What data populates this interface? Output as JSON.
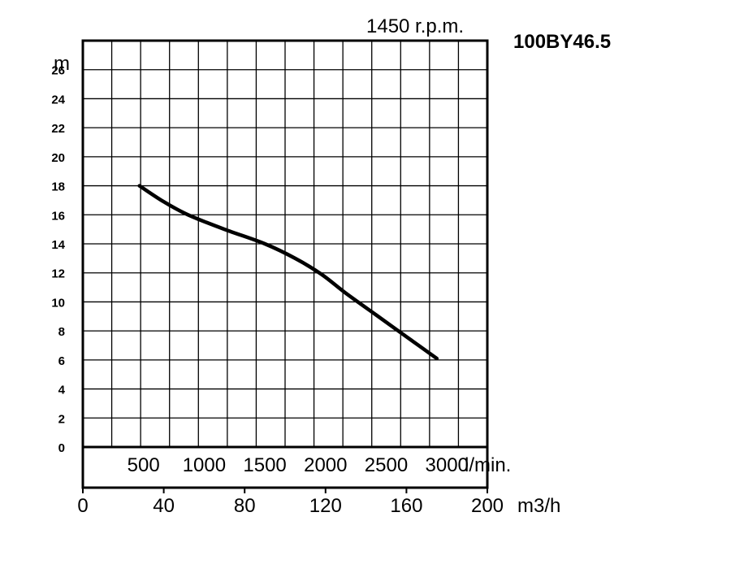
{
  "chart_data": {
    "type": "line",
    "title": "100BY46.5",
    "subtitle": "1450 r.p.m.",
    "ylabel": "m",
    "xlabel": "m3/h",
    "secondary_xlabel": "l/min.",
    "ylim": [
      0,
      28
    ],
    "xlim": [
      0,
      200
    ],
    "y_ticks": [
      "0",
      "2",
      "4",
      "6",
      "8",
      "10",
      "12",
      "14",
      "16",
      "18",
      "20",
      "22",
      "24",
      "26"
    ],
    "x_ticks": [
      "0",
      "40",
      "80",
      "120",
      "160",
      "200"
    ],
    "secondary_x_ticks": [
      "500",
      "1000",
      "1500",
      "2000",
      "2500",
      "3000"
    ],
    "grid": true,
    "series": [
      {
        "x": [
          28,
          40,
          52,
          70,
          90,
          105,
          118,
          130,
          145,
          160,
          175
        ],
        "y": [
          18,
          16.9,
          16.0,
          15.0,
          14.0,
          13.0,
          11.9,
          10.6,
          9.1,
          7.6,
          6.1
        ]
      }
    ]
  }
}
